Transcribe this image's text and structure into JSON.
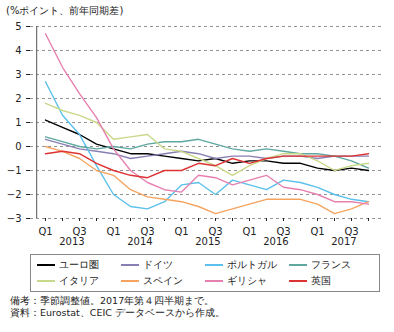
{
  "chart_data": {
    "type": "line",
    "y_label": "(%ポイント、前年同期差)",
    "categories": [
      "Q1",
      null,
      "Q3",
      null,
      "Q1",
      null,
      "Q3",
      null,
      "Q1",
      null,
      "Q3",
      null,
      "Q1",
      null,
      "Q3",
      null,
      "Q1",
      null,
      "Q3",
      null
    ],
    "x_groups": [
      "2013",
      "2014",
      "2015",
      "2016",
      "2017"
    ],
    "ylim": [
      -3,
      5
    ],
    "yticks": [
      -3,
      -2,
      -1,
      0,
      1,
      2,
      3,
      4,
      5
    ],
    "grid": true,
    "legend": "bottom",
    "series": [
      {
        "name": "ユーロ圏",
        "color": "#000000",
        "values": [
          1.1,
          0.8,
          0.5,
          0.1,
          -0.1,
          -0.3,
          -0.3,
          -0.4,
          -0.5,
          -0.6,
          -0.5,
          -0.7,
          -0.6,
          -0.6,
          -0.7,
          -0.7,
          -0.9,
          -1.0,
          -0.9,
          -1.0
        ]
      },
      {
        "name": "ドイツ",
        "color": "#8a7fb3",
        "values": [
          0.3,
          0.1,
          -0.1,
          -0.2,
          -0.3,
          -0.5,
          -0.4,
          -0.3,
          -0.2,
          -0.3,
          -0.5,
          -0.4,
          -0.4,
          -0.5,
          -0.4,
          -0.4,
          -0.5,
          -0.4,
          -0.4,
          -0.4
        ]
      },
      {
        "name": "ポルトガル",
        "color": "#5bc0eb",
        "values": [
          2.7,
          1.3,
          0.5,
          -0.8,
          -2.0,
          -2.5,
          -2.6,
          -2.3,
          -1.6,
          -1.5,
          -2.0,
          -1.4,
          -1.6,
          -1.8,
          -1.4,
          -1.5,
          -1.7,
          -2.0,
          -2.2,
          -2.3
        ]
      },
      {
        "name": "フランス",
        "color": "#5fa8a0",
        "values": [
          0.4,
          0.2,
          0.0,
          -0.1,
          0.0,
          -0.1,
          0.1,
          0.2,
          0.2,
          0.3,
          0.1,
          -0.1,
          -0.2,
          -0.1,
          -0.2,
          -0.3,
          -0.3,
          -0.4,
          -0.6,
          -0.9
        ]
      },
      {
        "name": "イタリア",
        "color": "#c8d98a",
        "values": [
          1.8,
          1.5,
          1.3,
          1.0,
          0.3,
          0.4,
          0.5,
          -0.1,
          -0.2,
          -0.5,
          -0.8,
          -1.2,
          -0.8,
          -0.5,
          -0.3,
          -0.3,
          -0.6,
          -1.0,
          -0.8,
          -0.7
        ]
      },
      {
        "name": "スペイン",
        "color": "#f4a460",
        "values": [
          0.0,
          -0.2,
          -0.5,
          -1.0,
          -1.2,
          -1.8,
          -2.1,
          -2.2,
          -2.3,
          -2.5,
          -2.8,
          -2.6,
          -2.4,
          -2.2,
          -2.2,
          -2.2,
          -2.4,
          -2.8,
          -2.6,
          -2.3
        ]
      },
      {
        "name": "ギリシャ",
        "color": "#e680b0",
        "values": [
          4.7,
          3.3,
          2.2,
          1.2,
          -0.1,
          -1.0,
          -1.5,
          -1.8,
          -1.9,
          -1.2,
          -1.3,
          -1.6,
          -1.4,
          -1.2,
          -1.7,
          -1.8,
          -2.0,
          -2.3,
          -2.3,
          -2.4
        ]
      },
      {
        "name": "英国",
        "color": "#dd3333",
        "values": [
          -0.3,
          -0.2,
          -0.3,
          -0.7,
          -1.0,
          -1.2,
          -1.3,
          -1.0,
          -1.0,
          -0.7,
          -0.8,
          -0.5,
          -0.7,
          -0.5,
          -0.4,
          -0.4,
          -0.4,
          -0.4,
          -0.4,
          -0.3
        ]
      }
    ],
    "notes": [
      "備考：季節調整値。2017年第４四半期まで。",
      "資料：Eurostat、CEIC データベースから作成。"
    ]
  }
}
